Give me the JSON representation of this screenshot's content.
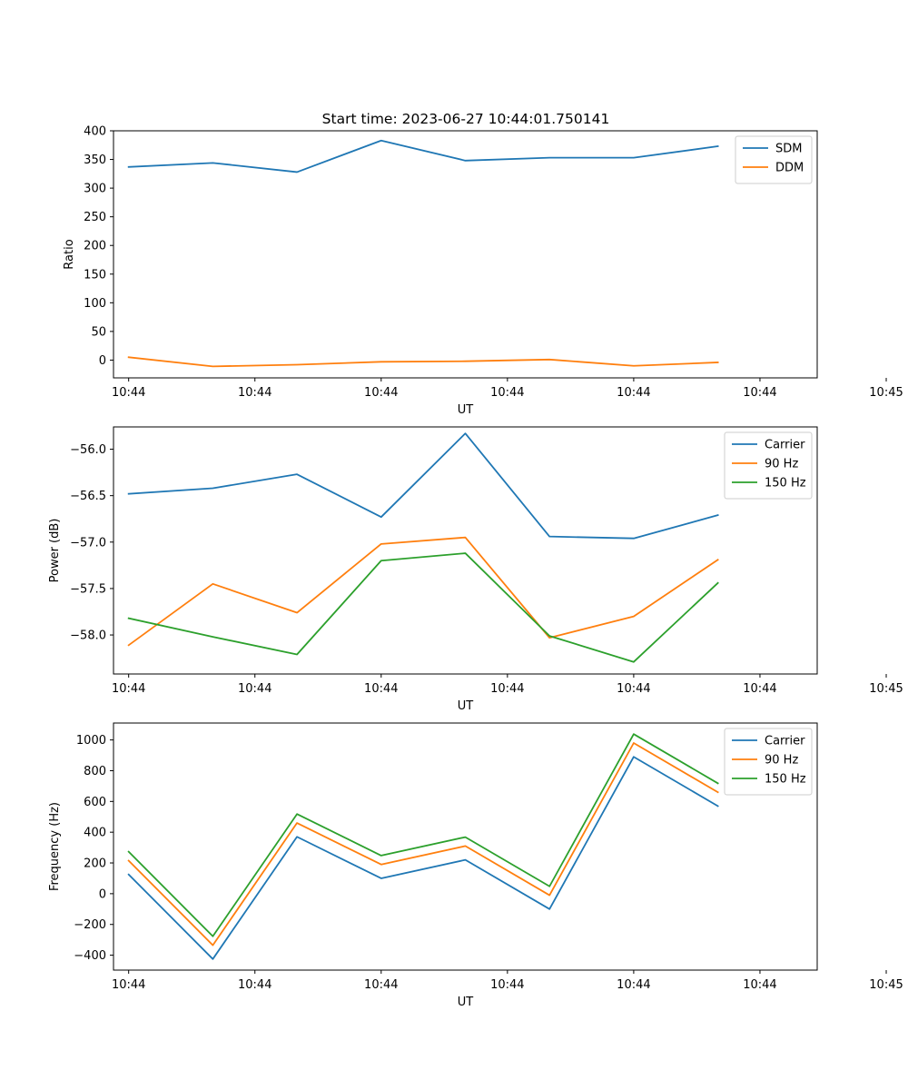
{
  "figure": {
    "title": "Start time: 2023-06-27 10:44:01.750141"
  },
  "chart_data": [
    {
      "type": "line",
      "xlabel": "UT",
      "ylabel": "Ratio",
      "x": [
        1,
        2,
        3,
        4,
        5,
        6,
        7,
        8
      ],
      "xlim": [
        0.82,
        9.18
      ],
      "xticks": [
        {
          "value": 1.0,
          "label": "10:44"
        },
        {
          "value": 2.5,
          "label": "10:44"
        },
        {
          "value": 4.0,
          "label": "10:44"
        },
        {
          "value": 5.5,
          "label": "10:44"
        },
        {
          "value": 7.0,
          "label": "10:44"
        },
        {
          "value": 8.5,
          "label": "10:44"
        },
        {
          "value": 10.0,
          "label": "10:45"
        }
      ],
      "ylim": [
        -31,
        400
      ],
      "yticks": [
        0,
        50,
        100,
        150,
        200,
        250,
        300,
        350,
        400
      ],
      "legend": "top-right",
      "series": [
        {
          "name": "SDM",
          "color": "#1f77b4",
          "values": [
            337,
            344,
            328,
            383,
            348,
            353,
            353,
            373
          ]
        },
        {
          "name": "DDM",
          "color": "#ff7f0e",
          "values": [
            5,
            -11,
            -8,
            -3,
            -2,
            1,
            -10,
            -4
          ]
        }
      ]
    },
    {
      "type": "line",
      "xlabel": "UT",
      "ylabel": "Power (dB)",
      "x": [
        1,
        2,
        3,
        4,
        5,
        6,
        7,
        8
      ],
      "xlim": [
        0.82,
        9.18
      ],
      "xticks": [
        {
          "value": 1.0,
          "label": "10:44"
        },
        {
          "value": 2.5,
          "label": "10:44"
        },
        {
          "value": 4.0,
          "label": "10:44"
        },
        {
          "value": 5.5,
          "label": "10:44"
        },
        {
          "value": 7.0,
          "label": "10:44"
        },
        {
          "value": 8.5,
          "label": "10:44"
        },
        {
          "value": 10.0,
          "label": "10:45"
        }
      ],
      "ylim": [
        -58.42,
        -55.76
      ],
      "yticks": [
        -58.0,
        -57.5,
        -57.0,
        -56.5,
        -56.0
      ],
      "ytick_labels": [
        "−58.0",
        "−57.5",
        "−57.0",
        "−56.5",
        "−56.0"
      ],
      "legend": "top-right",
      "series": [
        {
          "name": "Carrier",
          "color": "#1f77b4",
          "values": [
            -56.48,
            -56.42,
            -56.27,
            -56.73,
            -55.83,
            -56.94,
            -56.96,
            -56.71
          ]
        },
        {
          "name": "90 Hz",
          "color": "#ff7f0e",
          "values": [
            -58.11,
            -57.45,
            -57.76,
            -57.02,
            -56.95,
            -58.03,
            -57.8,
            -57.19
          ]
        },
        {
          "name": "150 Hz",
          "color": "#2ca02c",
          "values": [
            -57.82,
            -58.02,
            -58.21,
            -57.2,
            -57.12,
            -58.01,
            -58.29,
            -57.44
          ]
        }
      ]
    },
    {
      "type": "line",
      "xlabel": "UT",
      "ylabel": "Frequency (Hz)",
      "x": [
        1,
        2,
        3,
        4,
        5,
        6,
        7,
        8
      ],
      "xlim": [
        0.82,
        9.18
      ],
      "xticks": [
        {
          "value": 1.0,
          "label": "10:44"
        },
        {
          "value": 2.5,
          "label": "10:44"
        },
        {
          "value": 4.0,
          "label": "10:44"
        },
        {
          "value": 5.5,
          "label": "10:44"
        },
        {
          "value": 7.0,
          "label": "10:44"
        },
        {
          "value": 8.5,
          "label": "10:44"
        },
        {
          "value": 10.0,
          "label": "10:45"
        }
      ],
      "ylim": [
        -497,
        1110
      ],
      "yticks": [
        -400,
        -200,
        0,
        200,
        400,
        600,
        800,
        1000
      ],
      "ytick_labels": [
        "−400",
        "−200",
        "0",
        "200",
        "400",
        "600",
        "800",
        "1000"
      ],
      "legend": "top-right",
      "series": [
        {
          "name": "Carrier",
          "color": "#1f77b4",
          "values": [
            125,
            -425,
            370,
            100,
            220,
            -100,
            890,
            570
          ]
        },
        {
          "name": "90 Hz",
          "color": "#ff7f0e",
          "values": [
            215,
            -335,
            460,
            190,
            310,
            -10,
            980,
            660
          ]
        },
        {
          "name": "150 Hz",
          "color": "#2ca02c",
          "values": [
            273,
            -277,
            518,
            248,
            368,
            48,
            1038,
            718
          ]
        }
      ]
    }
  ]
}
